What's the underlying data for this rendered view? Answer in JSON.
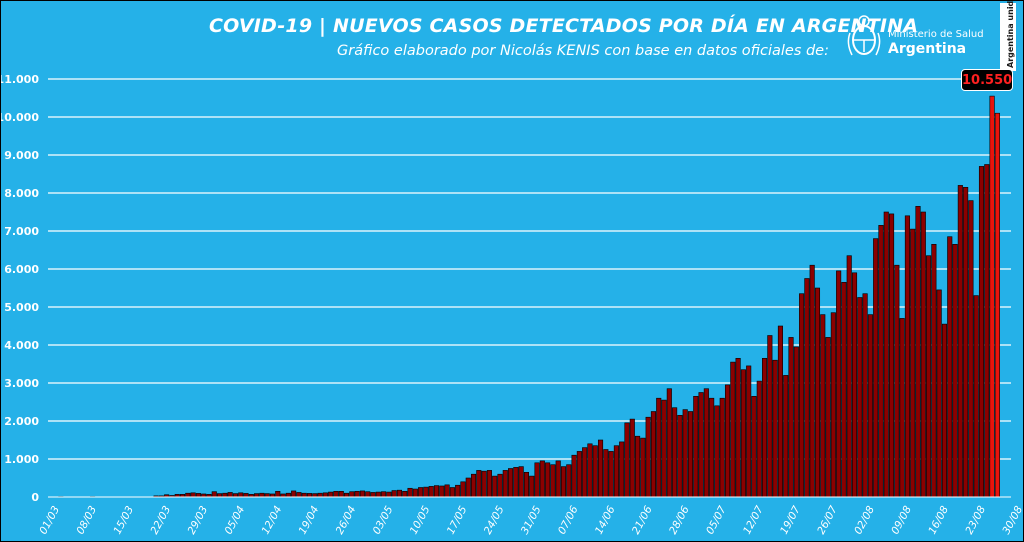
{
  "title": "COVID-19  |  NUEVOS CASOS DETECTADOS POR DÍA EN ARGENTINA",
  "subtitle": "Gráfico elaborado por Nicolás KENIS con base en datos oficiales de:",
  "logo": {
    "ministry": "Ministerio de Salud",
    "country": "Argentina",
    "tag": "Argentina unida"
  },
  "colors": {
    "background": "#25b1e8",
    "bar": "#8b0000",
    "bar_highlight": "#e8140c",
    "gridline": "#ffffff"
  },
  "chart_data": {
    "type": "bar",
    "xlabel": "",
    "ylabel": "",
    "ylim": [
      0,
      11000
    ],
    "yticks": [
      0,
      1000,
      2000,
      3000,
      4000,
      5000,
      6000,
      7000,
      8000,
      9000,
      10000,
      11000
    ],
    "ytick_labels": [
      "0",
      "1.000",
      "2.000",
      "3.000",
      "4.000",
      "5.000",
      "6.000",
      "7.000",
      "8.000",
      "9.000",
      "10.000",
      "11.000"
    ],
    "xtick_labels": [
      "01/03",
      "08/03",
      "15/03",
      "22/03",
      "29/03",
      "05/04",
      "12/04",
      "19/04",
      "26/04",
      "03/05",
      "10/05",
      "17/05",
      "24/05",
      "31/05",
      "07/06",
      "14/06",
      "21/06",
      "28/06",
      "05/07",
      "12/07",
      "19/07",
      "26/07",
      "02/08",
      "09/08",
      "16/08",
      "23/08",
      "30/08"
    ],
    "grid": true,
    "highlight_label": "10.550",
    "x_start": "01/03",
    "values": [
      0,
      10,
      0,
      0,
      5,
      0,
      5,
      10,
      0,
      0,
      0,
      0,
      0,
      0,
      0,
      0,
      0,
      0,
      0,
      30,
      30,
      60,
      40,
      70,
      70,
      100,
      110,
      95,
      80,
      70,
      140,
      90,
      100,
      120,
      90,
      110,
      95,
      70,
      90,
      100,
      90,
      80,
      150,
      80,
      100,
      160,
      120,
      100,
      95,
      90,
      100,
      110,
      130,
      150,
      150,
      100,
      140,
      150,
      160,
      140,
      120,
      130,
      140,
      130,
      170,
      180,
      150,
      230,
      210,
      250,
      260,
      280,
      300,
      290,
      320,
      250,
      310,
      400,
      500,
      600,
      700,
      680,
      700,
      550,
      600,
      700,
      750,
      780,
      800,
      650,
      550,
      900,
      950,
      900,
      850,
      950,
      800,
      850,
      1100,
      1200,
      1300,
      1400,
      1350,
      1500,
      1250,
      1200,
      1350,
      1450,
      1950,
      2050,
      1600,
      1550,
      2100,
      2250,
      2600,
      2550,
      2850,
      2350,
      2150,
      2300,
      2250,
      2650,
      2750,
      2850,
      2600,
      2400,
      2600,
      2950,
      3550,
      3650,
      3350,
      3450,
      2650,
      3050,
      3650,
      4250,
      3600,
      4500,
      3200,
      4200,
      3950,
      5350,
      5750,
      6100,
      5500,
      4800,
      4200,
      4850,
      5950,
      5650,
      6350,
      5900,
      5250,
      5350,
      4800,
      6800,
      7150,
      7500,
      7450,
      6100,
      4700,
      7400,
      7050,
      7650,
      7500,
      6350,
      6650,
      5450,
      4550,
      6850,
      6650,
      8200,
      8150,
      7800,
      5300,
      8700,
      8750,
      10550,
      10100
    ]
  }
}
